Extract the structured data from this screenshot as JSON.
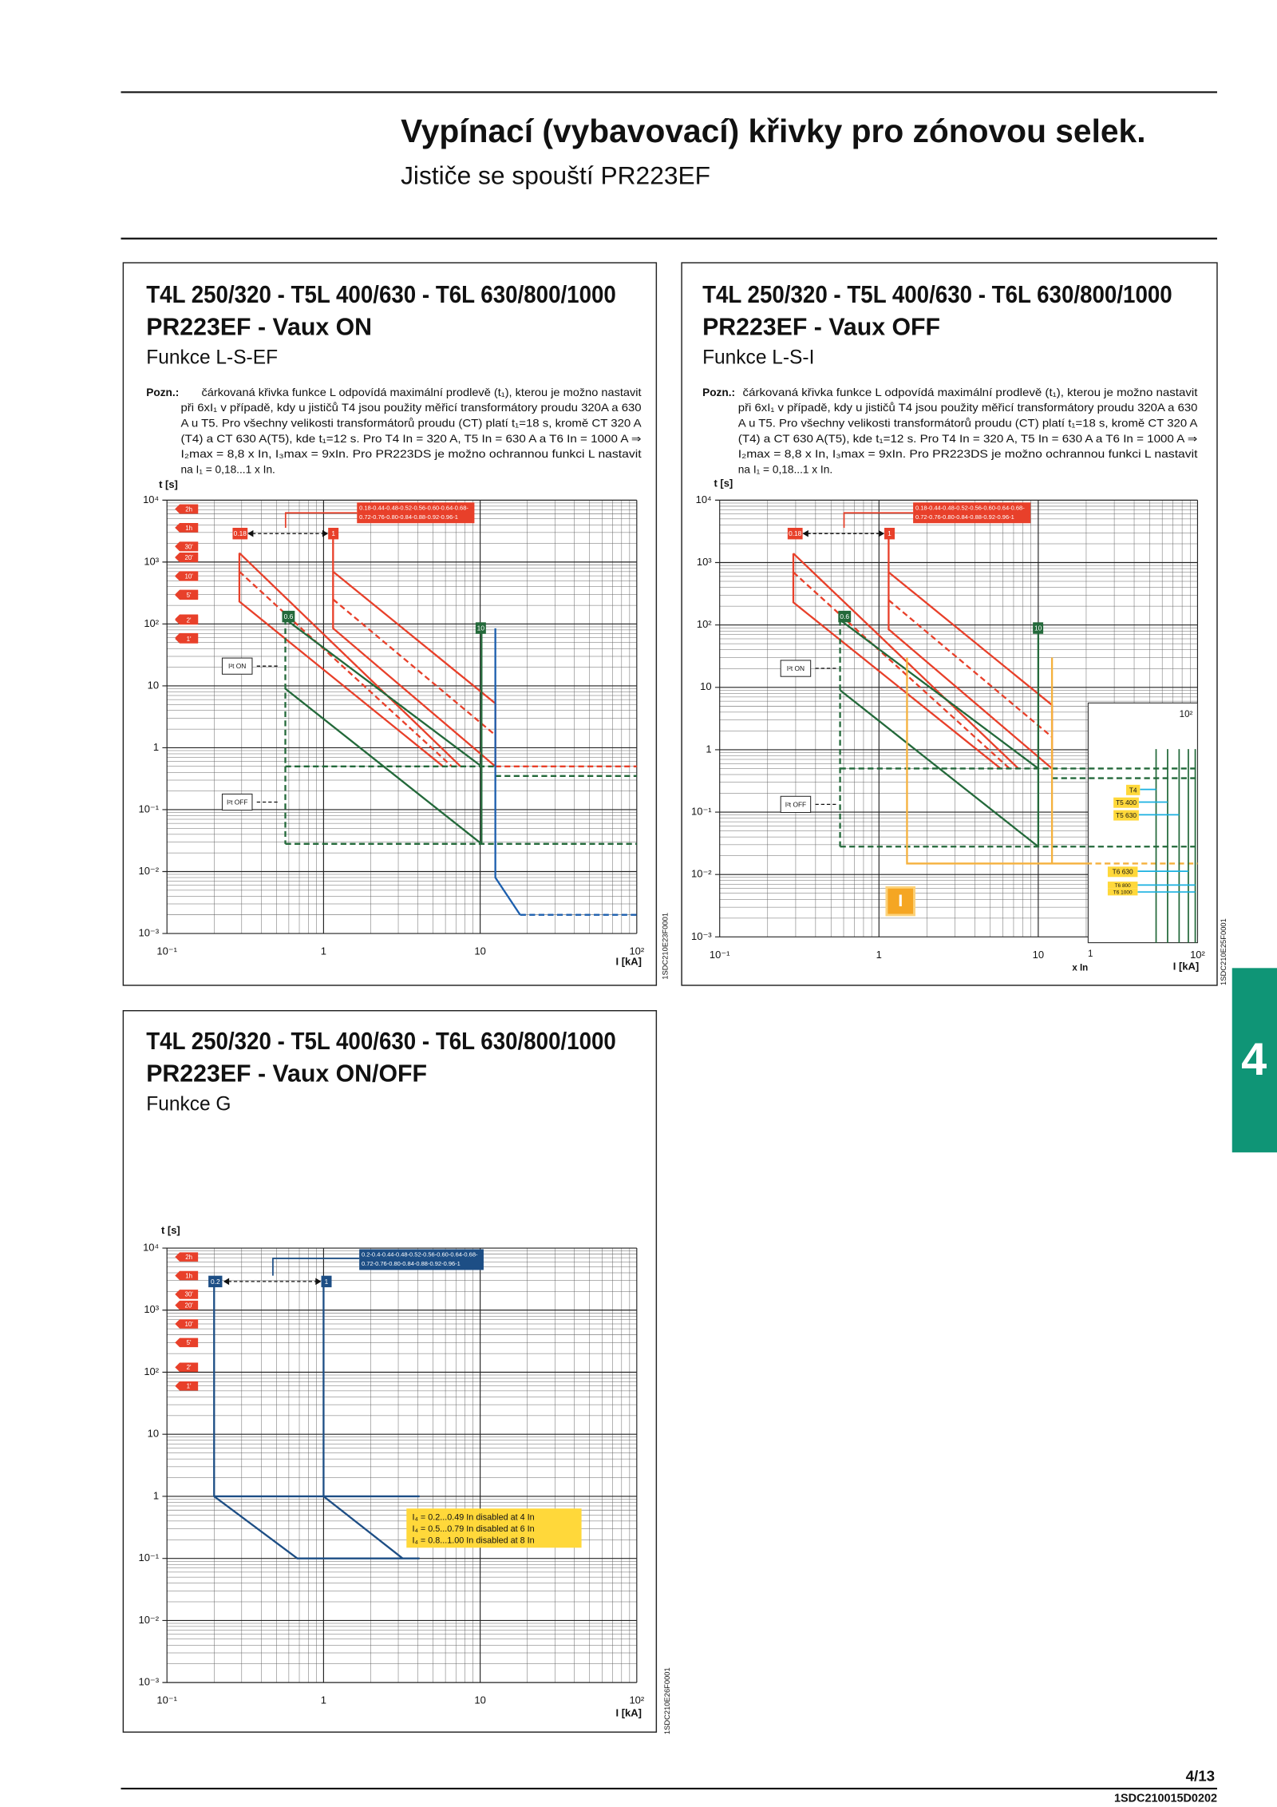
{
  "header": {
    "title": "Vypínací (vybavovací) křivky pro zónovou selek.",
    "subtitle": "Jističe se spouští PR223EF"
  },
  "tab": "4",
  "footer": {
    "page": "4/13",
    "code": "1SDC210015D0202"
  },
  "charts": [
    {
      "type": "line",
      "log_x": true,
      "log_y": true,
      "grid": true,
      "title_lines": [
        "T4L 250/320 - T5L 400/630 - T6L 630/800/1000",
        "PR223EF - Vaux ON"
      ],
      "subtitle": "Funkce L-S-EF",
      "note": {
        "label": "Pozn.:",
        "lines": [
          "čárkovaná křivka funkce L odpovídá maximální prodlevě (t₁), kterou je možno nastavit",
          "při 6xI₁ v případě, kdy u jističů T4 jsou použity měřicí transformátory proudu 320A a 630",
          "A u T5. Pro všechny velikosti transformátorů proudu (CT) platí t₁=18 s, kromě CT 320 A",
          "(T4) a CT 630 A(T5), kde t₁=12 s. Pro T4 In = 320 A, T5 In = 630 A a T6 In = 1000 A ⇒",
          "I₂max = 8,8 x In, I₃max = 9xIn. Pro PR223DS je možno ochrannou funkci L nastavit",
          "na I₁ = 0,18...1 x In."
        ]
      },
      "ylabel": "t [s]",
      "xlabel": "I [kA]",
      "xlim": [
        0.1,
        100
      ],
      "ylim": [
        0.001,
        10000
      ],
      "xticks": [
        {
          "value": 0.1,
          "label": "10⁻¹"
        },
        1,
        10,
        {
          "value": 100,
          "label": "10²"
        }
      ],
      "yticks": [
        {
          "value": 0.001,
          "label": "10⁻³"
        },
        {
          "value": 0.01,
          "label": "10⁻²"
        },
        {
          "value": 0.1,
          "label": "10⁻¹"
        },
        1,
        10,
        {
          "value": 100,
          "label": "10²"
        },
        {
          "value": 1000,
          "label": "10³"
        },
        {
          "value": 10000,
          "label": "10⁴"
        }
      ],
      "time_marks": [
        {
          "value": 7200,
          "label": "2h"
        },
        {
          "value": 3600,
          "label": "1h"
        },
        {
          "value": 1800,
          "label": "30'"
        },
        {
          "value": 1200,
          "label": "20'"
        },
        {
          "value": 600,
          "label": "10'"
        },
        {
          "value": 300,
          "label": "5'"
        },
        {
          "value": 120,
          "label": "2'"
        },
        {
          "value": 60,
          "label": "1'"
        }
      ],
      "series": [
        {
          "color": "#e8402a",
          "x": [
            0.29,
            0.29,
            5.8
          ],
          "values": [
            1400,
            230,
            0.5
          ]
        },
        {
          "color": "#e8402a",
          "x": [
            0.29,
            7.5
          ],
          "values": [
            1400,
            0.5
          ]
        },
        {
          "color": "#e8402a",
          "dash": true,
          "x": [
            0.29,
            6.6
          ],
          "values": [
            700,
            0.5
          ]
        },
        {
          "color": "#e8402a",
          "x": [
            1.15,
            1.15,
            12.5
          ],
          "values": [
            2500,
            85,
            0.5
          ]
        },
        {
          "color": "#e8402a",
          "x": [
            1.15,
            12.5,
            12.5
          ],
          "values": [
            700,
            5.2,
            0.5
          ]
        },
        {
          "color": "#e8402a",
          "dash": true,
          "x": [
            1.15,
            12.5
          ],
          "values": [
            250,
            1.6
          ]
        },
        {
          "color": "#e8402a",
          "dash": true,
          "x": [
            12.5,
            100
          ],
          "values": [
            0.5,
            0.5
          ]
        },
        {
          "color": "#23693a",
          "dash": true,
          "x": [
            0.57,
            0.57
          ],
          "values": [
            120,
            0.028
          ]
        },
        {
          "color": "#23693a",
          "x": [
            0.57,
            10.2
          ],
          "values": [
            120,
            0.5
          ]
        },
        {
          "color": "#23693a",
          "x": [
            0.57,
            10.2
          ],
          "values": [
            9,
            0.028
          ]
        },
        {
          "color": "#23693a",
          "x": [
            10.2,
            10.2
          ],
          "values": [
            90,
            0.028
          ]
        },
        {
          "color": "#23693a",
          "dash": true,
          "x": [
            0.57,
            12.5
          ],
          "values": [
            0.5,
            0.5
          ]
        },
        {
          "color": "#23693a",
          "dash": true,
          "x": [
            12.5,
            100
          ],
          "values": [
            0.35,
            0.35
          ]
        },
        {
          "color": "#23693a",
          "dash": true,
          "x": [
            0.57,
            100
          ],
          "values": [
            0.028,
            0.028
          ]
        },
        {
          "color": "#1c5fae",
          "x": [
            12.5,
            12.5,
            18
          ],
          "values": [
            85,
            0.008,
            0.002
          ]
        },
        {
          "color": "#1c5fae",
          "dash": true,
          "x": [
            18,
            100
          ],
          "values": [
            0.002,
            0.002
          ]
        }
      ],
      "annotations": [
        "0.18",
        "1",
        "0.18-0.44-0.48-0.52-0.56-0.60-0.64-0.68-",
        "0.72-0.76-0.80-0.84-0.88-0.92-0.96-1",
        "0.6",
        "10",
        "I²t ON",
        "I²t OFF"
      ],
      "code": "1SDC210E23F0001"
    },
    {
      "type": "line",
      "log_x": true,
      "log_y": true,
      "grid": true,
      "title_lines": [
        "T4L 250/320 - T5L 400/630 - T6L 630/800/1000",
        "PR223EF - Vaux OFF"
      ],
      "subtitle": "Funkce L-S-I",
      "note": {
        "label": "Pozn.:",
        "lines": [
          "čárkovaná křivka funkce L odpovídá maximální prodlevě (t₁), kterou je možno nastavit",
          "při 6xI₁ v případě, kdy u jističů T4 jsou použity měřicí transformátory proudu 320A a 630",
          "A u T5. Pro všechny velikosti transformátorů proudu (CT) platí t₁=18 s, kromě CT 320 A",
          "(T4) a CT 630 A(T5), kde t₁=12 s. Pro T4 In = 320 A, T5 In = 630 A a T6 In = 1000 A ⇒",
          "I₂max = 8,8 x In, I₃max = 9xIn. Pro PR223DS je možno ochrannou funkci L nastavit",
          "na I₁ = 0,18...1 x In."
        ]
      },
      "ylabel": "t [s]",
      "xlabel": "I [kA]",
      "xlim": [
        0.1,
        100
      ],
      "ylim": [
        0.001,
        10000
      ],
      "xticks": [
        {
          "value": 0.1,
          "label": "10⁻¹"
        },
        1,
        10,
        {
          "value": 100,
          "label": "10²"
        }
      ],
      "yticks": [
        {
          "value": 0.001,
          "label": "10⁻³"
        },
        {
          "value": 0.01,
          "label": "10⁻²"
        },
        {
          "value": 0.1,
          "label": "10⁻¹"
        },
        1,
        10,
        {
          "value": 100,
          "label": "10²"
        },
        {
          "value": 1000,
          "label": "10³"
        },
        {
          "value": 10000,
          "label": "10⁴"
        }
      ],
      "time_marks": [
        {
          "value": 7200,
          "label": "2h"
        },
        {
          "value": 3600,
          "label": "1h"
        },
        {
          "value": 1800,
          "label": "30'"
        },
        {
          "value": 1200,
          "label": "20'"
        },
        {
          "value": 600,
          "label": "10'"
        },
        {
          "value": 300,
          "label": "5'"
        },
        {
          "value": 120,
          "label": "2'"
        },
        {
          "value": 60,
          "label": "1'"
        }
      ],
      "series": [
        {
          "color": "#e8402a",
          "x": [
            0.29,
            0.29,
            5.8
          ],
          "values": [
            1400,
            230,
            0.5
          ]
        },
        {
          "color": "#e8402a",
          "x": [
            0.29,
            7.5
          ],
          "values": [
            1400,
            0.5
          ]
        },
        {
          "color": "#e8402a",
          "dash": true,
          "x": [
            0.29,
            6.6
          ],
          "values": [
            700,
            0.5
          ]
        },
        {
          "color": "#e8402a",
          "x": [
            1.15,
            1.15,
            12.2
          ],
          "values": [
            2500,
            85,
            0.5
          ]
        },
        {
          "color": "#e8402a",
          "x": [
            1.15,
            12.2,
            12.2
          ],
          "values": [
            700,
            5.2,
            0.5
          ]
        },
        {
          "color": "#e8402a",
          "dash": true,
          "x": [
            1.15,
            12.2
          ],
          "values": [
            250,
            1.6
          ]
        },
        {
          "color": "#23693a",
          "dash": true,
          "x": [
            0.57,
            0.57
          ],
          "values": [
            120,
            0.028
          ]
        },
        {
          "color": "#23693a",
          "x": [
            0.57,
            10
          ],
          "values": [
            120,
            0.5
          ]
        },
        {
          "color": "#23693a",
          "x": [
            0.57,
            10
          ],
          "values": [
            9,
            0.028
          ]
        },
        {
          "color": "#23693a",
          "x": [
            10,
            10
          ],
          "values": [
            90,
            0.028
          ]
        },
        {
          "color": "#23693a",
          "dash": true,
          "x": [
            0.57,
            100
          ],
          "values": [
            0.5,
            0.5
          ]
        },
        {
          "color": "#23693a",
          "dash": true,
          "x": [
            12.2,
            100
          ],
          "values": [
            0.35,
            0.35
          ]
        },
        {
          "color": "#23693a",
          "dash": true,
          "x": [
            0.57,
            100
          ],
          "values": [
            0.028,
            0.028
          ]
        },
        {
          "color": "#f5b13d",
          "x": [
            1.5,
            1.5,
            20
          ],
          "values": [
            30,
            0.015,
            0.015
          ]
        },
        {
          "color": "#f5b13d",
          "dash": true,
          "x": [
            20,
            100
          ],
          "values": [
            0.015,
            0.015
          ]
        },
        {
          "color": "#f5b13d",
          "x": [
            12.2,
            12.2
          ],
          "values": [
            30,
            0.015
          ]
        }
      ],
      "annotations": [
        "0.18",
        "1",
        "0.18-0.44-0.48-0.52-0.56-0.60-0.64-0.68-",
        "0.72-0.76-0.80-0.84-0.88-0.92-0.96-1",
        "0.6",
        "10",
        "I²t ON",
        "I²t OFF",
        "10²",
        "1",
        "x In",
        "T4",
        "T5 400",
        "T5 630",
        "T6 630",
        "T6 800",
        "T6 1000",
        "I"
      ],
      "code": "1SDC210E25F0001"
    },
    {
      "type": "line",
      "log_x": true,
      "log_y": true,
      "grid": true,
      "title_lines": [
        "T4L 250/320 - T5L 400/630 - T6L 630/800/1000",
        "PR223EF - Vaux ON/OFF"
      ],
      "subtitle": "Funkce G",
      "ylabel": "t [s]",
      "xlabel": "I [kA]",
      "xlim": [
        0.1,
        100
      ],
      "ylim": [
        0.001,
        10000
      ],
      "xticks": [
        {
          "value": 0.1,
          "label": "10⁻¹"
        },
        1,
        10,
        {
          "value": 100,
          "label": "10²"
        }
      ],
      "yticks": [
        {
          "value": 0.001,
          "label": "10⁻³"
        },
        {
          "value": 0.01,
          "label": "10⁻²"
        },
        {
          "value": 0.1,
          "label": "10⁻¹"
        },
        1,
        10,
        {
          "value": 100,
          "label": "10²"
        },
        {
          "value": 1000,
          "label": "10³"
        },
        {
          "value": 10000,
          "label": "10⁴"
        }
      ],
      "time_marks": [
        {
          "value": 7200,
          "label": "2h"
        },
        {
          "value": 3600,
          "label": "1h"
        },
        {
          "value": 1800,
          "label": "30'"
        },
        {
          "value": 1200,
          "label": "20'"
        },
        {
          "value": 600,
          "label": "10'"
        },
        {
          "value": 300,
          "label": "5'"
        },
        {
          "value": 120,
          "label": "2'"
        },
        {
          "value": 60,
          "label": "1'"
        }
      ],
      "series": [
        {
          "color": "#1d4e85",
          "x": [
            0.2,
            0.2,
            0.68,
            4.1
          ],
          "values": [
            3000,
            1,
            0.1,
            0.1
          ]
        },
        {
          "color": "#1d4e85",
          "x": [
            1,
            1,
            3.2
          ],
          "values": [
            3000,
            1,
            0.1
          ]
        },
        {
          "color": "#1d4e85",
          "x": [
            0.2,
            4.1
          ],
          "values": [
            1,
            1
          ]
        }
      ],
      "annotations": [
        "0.2",
        "1",
        "0.2-0.4-0.44-0.48-0.52-0.56-0.60-0.64-0.68-",
        "0.72-0.76-0.80-0.84-0.88-0.92-0.96-1",
        "I₄ = 0.2...0.49 In disabled at 4 In",
        "I₄ = 0.5...0.79 In disabled at 6 In",
        "I₄ = 0.8...1.00 In disabled at 8 In"
      ],
      "code": "1SDC210E26F0001"
    }
  ]
}
